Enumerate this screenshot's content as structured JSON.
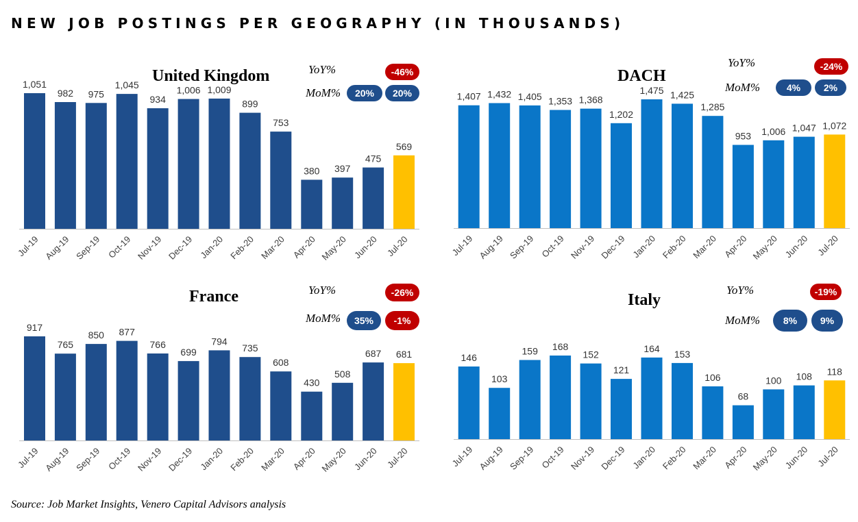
{
  "title": "NEW JOB POSTINGS PER GEOGRAPHY (IN THOUSANDS)",
  "source": "Source: Job Market Insights, Venero Capital Advisors analysis",
  "colors": {
    "bar_dark": "#1f4e8c",
    "bar_light": "#0a76c8",
    "highlight": "#ffc000",
    "pill_dark": "#1f4e8c",
    "pill_red": "#c00000",
    "axis": "#bfbfbf"
  },
  "chart_data": [
    {
      "type": "bar",
      "title": "United Kingdom",
      "categories": [
        "Jul-19",
        "Aug-19",
        "Sep-19",
        "Oct-19",
        "Nov-19",
        "Dec-19",
        "Jan-20",
        "Feb-20",
        "Mar-20",
        "Apr-20",
        "May-20",
        "Jun-20",
        "Jul-20"
      ],
      "values": [
        1051,
        982,
        975,
        1045,
        934,
        1006,
        1009,
        899,
        753,
        380,
        397,
        475,
        569
      ],
      "value_labels": [
        "1,051",
        "982",
        "975",
        "1,045",
        "934",
        "1,006",
        "1,009",
        "899",
        "753",
        "380",
        "397",
        "475",
        "569"
      ],
      "ylim": [
        0,
        1100
      ],
      "bar_color": "#1f4e8c",
      "highlight_index": 12,
      "metrics": {
        "yoy_label": "YoY%",
        "mom_label": "MoM%",
        "yoy": [
          {
            "text": "-46%",
            "color": "#c00000"
          }
        ],
        "mom": [
          {
            "text": "20%",
            "color": "#1f4e8c"
          },
          {
            "text": "20%",
            "color": "#1f4e8c"
          }
        ]
      }
    },
    {
      "type": "bar",
      "title": "DACH",
      "categories": [
        "Jul-19",
        "Aug-19",
        "Sep-19",
        "Oct-19",
        "Nov-19",
        "Dec-19",
        "Jan-20",
        "Feb-20",
        "Mar-20",
        "Apr-20",
        "May-20",
        "Jun-20",
        "Jul-20"
      ],
      "values": [
        1407,
        1432,
        1405,
        1353,
        1368,
        1202,
        1475,
        1425,
        1285,
        953,
        1006,
        1047,
        1072
      ],
      "value_labels": [
        "1,407",
        "1,432",
        "1,405",
        "1,353",
        "1,368",
        "1,202",
        "1,475",
        "1,425",
        "1,285",
        "953",
        "1,006",
        "1,047",
        "1,072"
      ],
      "ylim": [
        0,
        1500
      ],
      "bar_color": "#0a76c8",
      "highlight_index": 12,
      "metrics": {
        "yoy_label": "YoY%",
        "mom_label": "MoM%",
        "yoy": [
          {
            "text": "-24%",
            "color": "#c00000"
          }
        ],
        "mom": [
          {
            "text": "4%",
            "color": "#1f4e8c"
          },
          {
            "text": "2%",
            "color": "#1f4e8c"
          }
        ]
      }
    },
    {
      "type": "bar",
      "title": "France",
      "categories": [
        "Jul-19",
        "Aug-19",
        "Sep-19",
        "Oct-19",
        "Nov-19",
        "Dec-19",
        "Jan-20",
        "Feb-20",
        "Mar-20",
        "Apr-20",
        "May-20",
        "Jun-20",
        "Jul-20"
      ],
      "values": [
        917,
        765,
        850,
        877,
        766,
        699,
        794,
        735,
        608,
        430,
        508,
        687,
        681
      ],
      "value_labels": [
        "917",
        "765",
        "850",
        "877",
        "766",
        "699",
        "794",
        "735",
        "608",
        "430",
        "508",
        "687",
        "681"
      ],
      "ylim": [
        0,
        950
      ],
      "bar_color": "#1f4e8c",
      "highlight_index": 12,
      "metrics": {
        "yoy_label": "YoY%",
        "mom_label": "MoM%",
        "yoy": [
          {
            "text": "-26%",
            "color": "#c00000"
          }
        ],
        "mom": [
          {
            "text": "35%",
            "color": "#1f4e8c"
          },
          {
            "text": "-1%",
            "color": "#c00000"
          }
        ]
      }
    },
    {
      "type": "bar",
      "title": "Italy",
      "categories": [
        "Jul-19",
        "Aug-19",
        "Sep-19",
        "Oct-19",
        "Nov-19",
        "Dec-19",
        "Jan-20",
        "Feb-20",
        "Mar-20",
        "Apr-20",
        "May-20",
        "Jun-20",
        "Jul-20"
      ],
      "values": [
        146,
        103,
        159,
        168,
        152,
        121,
        164,
        153,
        106,
        68,
        100,
        108,
        118
      ],
      "value_labels": [
        "146",
        "103",
        "159",
        "168",
        "152",
        "121",
        "164",
        "153",
        "106",
        "68",
        "100",
        "108",
        "118"
      ],
      "ylim": [
        0,
        170
      ],
      "bar_color": "#0a76c8",
      "highlight_index": 12,
      "metrics": {
        "yoy_label": "YoY%",
        "mom_label": "MoM%",
        "yoy": [
          {
            "text": "-19%",
            "color": "#c00000"
          }
        ],
        "mom": [
          {
            "text": "8%",
            "color": "#1f4e8c"
          },
          {
            "text": "9%",
            "color": "#1f4e8c"
          }
        ]
      }
    }
  ]
}
